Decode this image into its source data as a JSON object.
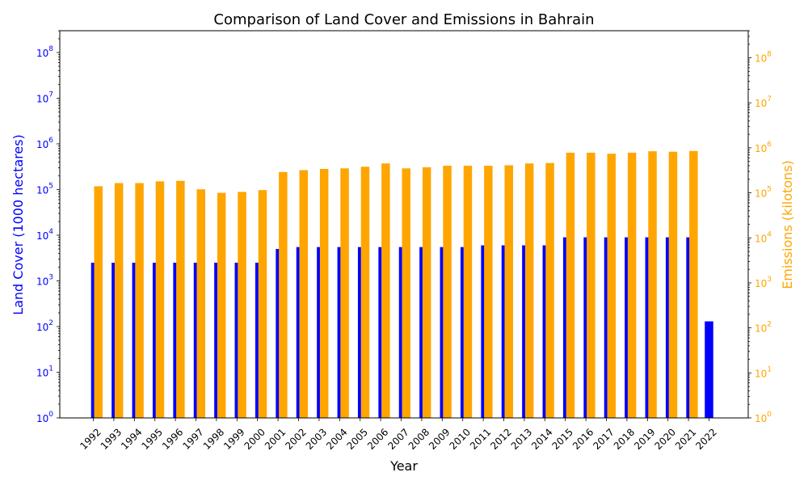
{
  "chart_data": {
    "type": "bar",
    "title": "Comparison of Land Cover and Emissions in Bahrain",
    "xlabel": "Year",
    "ylabel_left": "Land Cover (1000 hectares)",
    "ylabel_right": "Emissions (kilotons)",
    "yscale": "log",
    "ylim_left": [
      1,
      300000000
    ],
    "ylim_right": [
      1,
      400000000
    ],
    "categories": [
      "1992",
      "1993",
      "1994",
      "1995",
      "1996",
      "1997",
      "1998",
      "1999",
      "2000",
      "2001",
      "2002",
      "2003",
      "2004",
      "2005",
      "2006",
      "2007",
      "2008",
      "2009",
      "2010",
      "2011",
      "2012",
      "2013",
      "2014",
      "2015",
      "2016",
      "2017",
      "2018",
      "2019",
      "2020",
      "2021",
      "2022"
    ],
    "series": [
      {
        "name": "",
        "axis": "left",
        "color": "#0000ff",
        "values": [
          2500,
          2500,
          2500,
          2500,
          2500,
          2500,
          2500,
          2500,
          2500,
          5000,
          5500,
          5500,
          5500,
          5500,
          5500,
          5500,
          5500,
          5500,
          5500,
          6000,
          6000,
          6000,
          6000,
          9000,
          9000,
          9000,
          9000,
          9000,
          9000,
          9000,
          130
        ]
      },
      {
        "name": "",
        "axis": "right",
        "color": "#ffa500",
        "values": [
          140000,
          165000,
          165000,
          180000,
          185000,
          120000,
          100000,
          105000,
          115000,
          290000,
          320000,
          340000,
          350000,
          380000,
          450000,
          350000,
          370000,
          400000,
          400000,
          400000,
          410000,
          450000,
          460000,
          780000,
          780000,
          740000,
          780000,
          840000,
          820000,
          850000,
          null
        ]
      }
    ],
    "left_ticks": [
      "10^0",
      "10^1",
      "10^2",
      "10^3",
      "10^4",
      "10^5",
      "10^6",
      "10^7",
      "10^8"
    ],
    "right_ticks": [
      "10^0",
      "10^1",
      "10^2",
      "10^3",
      "10^4",
      "10^5",
      "10^6",
      "10^7",
      "10^8"
    ],
    "left_axis_color": "#0000ff",
    "right_axis_color": "#ffa500",
    "grid": false,
    "legend": "none"
  }
}
